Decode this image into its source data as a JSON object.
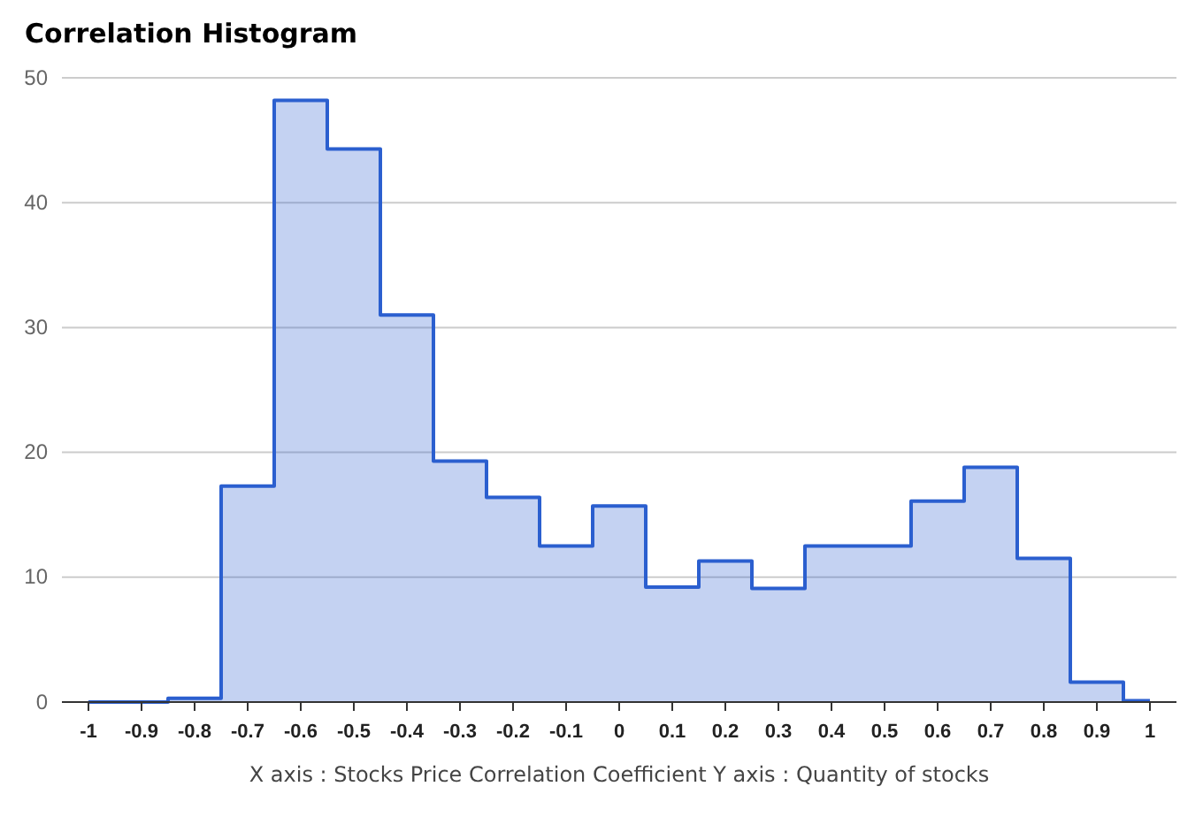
{
  "chart_data": {
    "type": "area",
    "title": "Correlation Histogram",
    "xlabel": "X axis : Stocks Price Correlation Coefficient  Y axis : Quantity of stocks",
    "x": [
      -1,
      -0.9,
      -0.8,
      -0.7,
      -0.6,
      -0.5,
      -0.4,
      -0.3,
      -0.2,
      -0.1,
      0,
      0.1,
      0.2,
      0.3,
      0.4,
      0.5,
      0.6,
      0.7,
      0.8,
      0.9,
      1
    ],
    "series": [
      {
        "color": "#2b5fcf",
        "values": [
          0,
          0,
          0.3,
          17.3,
          48.2,
          44.3,
          31,
          19.3,
          16.4,
          12.5,
          15.7,
          9.2,
          11.3,
          9.1,
          12.5,
          12.5,
          16.1,
          18.8,
          11.5,
          1.6,
          0.1
        ]
      }
    ],
    "xlim": [
      -1.05,
      1.05
    ],
    "xticks": [
      -1,
      -0.9,
      -0.8,
      -0.7,
      -0.6,
      -0.5,
      -0.4,
      -0.3,
      -0.2,
      -0.1,
      0,
      0.1,
      0.2,
      0.3,
      0.4,
      0.5,
      0.6,
      0.7,
      0.8,
      0.9,
      1
    ],
    "ylim": [
      0,
      50
    ],
    "yticks": [
      0,
      10,
      20,
      30,
      40,
      50
    ],
    "grid": "y"
  }
}
